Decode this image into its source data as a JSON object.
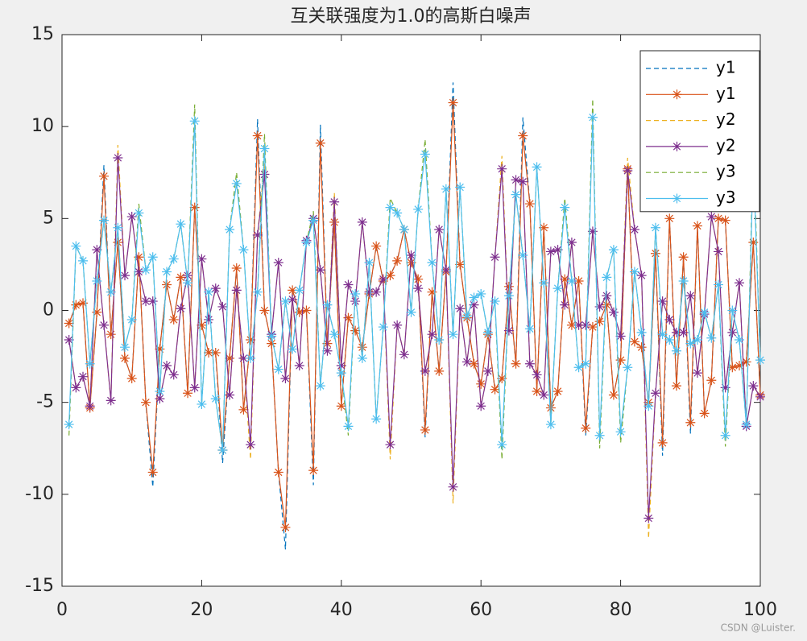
{
  "chart_data": {
    "type": "line",
    "title": "互关联强度为1.0的高斯白噪声",
    "x": [
      1,
      2,
      3,
      4,
      5,
      6,
      7,
      8,
      9,
      10,
      11,
      12,
      13,
      14,
      15,
      16,
      17,
      18,
      19,
      20,
      21,
      22,
      23,
      24,
      25,
      26,
      27,
      28,
      29,
      30,
      31,
      32,
      33,
      34,
      35,
      36,
      37,
      38,
      39,
      40,
      41,
      42,
      43,
      44,
      45,
      46,
      47,
      48,
      49,
      50,
      51,
      52,
      53,
      54,
      55,
      56,
      57,
      58,
      59,
      60,
      61,
      62,
      63,
      64,
      65,
      66,
      67,
      68,
      69,
      70,
      71,
      72,
      73,
      74,
      75,
      76,
      77,
      78,
      79,
      80,
      81,
      82,
      83,
      84,
      85,
      86,
      87,
      88,
      89,
      90,
      91,
      92,
      93,
      94,
      95,
      96,
      97,
      98,
      99,
      100
    ],
    "xlim": [
      0,
      100
    ],
    "xticks": [
      0,
      20,
      40,
      60,
      80,
      100
    ],
    "ylim": [
      -15,
      15
    ],
    "yticks": [
      -15,
      -10,
      -5,
      0,
      5,
      10,
      15
    ],
    "grid": false,
    "legend": "northeast",
    "watermark": "CSDN @Luister.",
    "series": [
      {
        "name": "y1",
        "color": "#0072BD",
        "line_style": "dashed",
        "marker": "none",
        "values": [
          -0.7,
          0.3,
          0.4,
          -5.3,
          -0.1,
          7.9,
          -1.3,
          3.7,
          -2.6,
          -3.7,
          2.9,
          -5.0,
          -9.6,
          -2.1,
          1.4,
          -0.5,
          1.8,
          -4.5,
          5.6,
          -0.8,
          -2.3,
          -2.3,
          -8.3,
          -2.6,
          2.3,
          -5.4,
          -1.6,
          10.4,
          0.0,
          -1.8,
          -8.8,
          -13.0,
          1.1,
          -0.1,
          0.0,
          -9.5,
          10.1,
          -1.8,
          4.8,
          -5.2,
          -0.4,
          -1.1,
          -2.0,
          0.9,
          3.5,
          1.6,
          1.9,
          2.7,
          4.4,
          2.6,
          1.7,
          -6.9,
          1.0,
          -3.3,
          2.1,
          12.4,
          2.5,
          -0.4,
          -2.9,
          -4.0,
          -1.3,
          -4.3,
          -3.7,
          1.3,
          -2.9,
          10.5,
          5.8,
          -4.4,
          4.5,
          -5.3,
          -4.4,
          1.7,
          -0.8,
          1.6,
          -6.8,
          -0.9,
          -0.6,
          0.3,
          -4.6,
          -2.7,
          7.7,
          -1.7,
          -2.0,
          -5.0,
          3.1,
          -7.9,
          5.0,
          -4.1,
          2.9,
          -6.7,
          4.6,
          -5.6,
          -3.8,
          5.0,
          4.9,
          -3.1,
          -3.0,
          -2.8,
          3.7,
          -4.6
        ]
      },
      {
        "name": "y1",
        "color": "#D95319",
        "line_style": "solid",
        "marker": "asterisk",
        "values": [
          -0.7,
          0.3,
          0.4,
          -5.3,
          -0.1,
          7.3,
          -1.3,
          3.7,
          -2.6,
          -3.7,
          2.9,
          -5.0,
          -8.8,
          -2.1,
          1.4,
          -0.5,
          1.8,
          -4.5,
          5.6,
          -0.8,
          -2.3,
          -2.3,
          -7.6,
          -2.6,
          2.3,
          -5.4,
          -1.6,
          9.5,
          0.0,
          -1.8,
          -8.8,
          -11.8,
          1.1,
          -0.1,
          0.0,
          -8.7,
          9.1,
          -1.8,
          4.8,
          -5.2,
          -0.4,
          -1.1,
          -2.0,
          0.9,
          3.5,
          1.6,
          1.9,
          2.7,
          4.4,
          2.6,
          1.7,
          -6.5,
          1.0,
          -3.3,
          2.1,
          11.3,
          2.5,
          -0.4,
          -2.9,
          -4.0,
          -1.3,
          -4.3,
          -3.7,
          1.3,
          -2.9,
          9.5,
          5.8,
          -4.4,
          4.5,
          -5.3,
          -4.4,
          1.7,
          -0.8,
          1.6,
          -6.4,
          -0.9,
          -0.6,
          0.3,
          -4.6,
          -2.7,
          7.7,
          -1.7,
          -2.0,
          -5.0,
          3.1,
          -7.2,
          5.0,
          -4.1,
          2.9,
          -6.1,
          4.6,
          -5.6,
          -3.8,
          5.0,
          4.9,
          -3.1,
          -3.0,
          -2.8,
          3.7,
          -4.6
        ]
      },
      {
        "name": "y2",
        "color": "#EDB120",
        "line_style": "dashed",
        "marker": "none",
        "values": [
          -1.6,
          -4.2,
          -3.6,
          -5.2,
          3.3,
          -0.8,
          -4.9,
          9.0,
          1.9,
          5.1,
          2.1,
          0.5,
          0.5,
          -4.8,
          -3.0,
          -3.5,
          0.1,
          1.9,
          -4.2,
          2.8,
          -0.5,
          1.2,
          0.2,
          -4.6,
          1.1,
          -2.6,
          -8.1,
          4.1,
          8.0,
          -1.3,
          2.6,
          -3.7,
          0.6,
          -3.0,
          3.8,
          5.0,
          2.2,
          -2.2,
          6.4,
          -3.0,
          1.4,
          0.5,
          4.8,
          1.0,
          1.0,
          1.7,
          -8.1,
          -0.8,
          -2.4,
          3.0,
          1.2,
          -3.3,
          -1.3,
          4.4,
          2.2,
          -10.5,
          0.1,
          -2.8,
          0.3,
          -5.2,
          -3.3,
          2.9,
          8.4,
          -1.1,
          7.1,
          7.0,
          -2.9,
          -3.5,
          -4.6,
          3.2,
          3.3,
          0.3,
          3.7,
          -0.8,
          -0.8,
          4.3,
          0.2,
          0.8,
          -0.1,
          -1.4,
          8.3,
          4.4,
          1.9,
          -12.4,
          -4.5,
          0.5,
          -0.5,
          -1.2,
          -1.2,
          0.8,
          -3.4,
          -0.2,
          5.1,
          3.2,
          -4.2,
          -1.2,
          1.5,
          -6.3,
          -4.1,
          -4.7
        ]
      },
      {
        "name": "y2",
        "color": "#7E2F8E",
        "line_style": "solid",
        "marker": "asterisk",
        "values": [
          -1.6,
          -4.2,
          -3.6,
          -5.2,
          3.3,
          -0.8,
          -4.9,
          8.3,
          1.9,
          5.1,
          2.1,
          0.5,
          0.5,
          -4.8,
          -3.0,
          -3.5,
          0.1,
          1.9,
          -4.2,
          2.8,
          -0.5,
          1.2,
          0.2,
          -4.6,
          1.1,
          -2.6,
          -7.3,
          4.1,
          7.4,
          -1.3,
          2.6,
          -3.7,
          0.6,
          -3.0,
          3.8,
          5.0,
          2.2,
          -2.2,
          5.9,
          -3.0,
          1.4,
          0.5,
          4.8,
          1.0,
          1.0,
          1.7,
          -7.3,
          -0.8,
          -2.4,
          3.0,
          1.2,
          -3.3,
          -1.3,
          4.4,
          2.2,
          -9.6,
          0.1,
          -2.8,
          0.3,
          -5.2,
          -3.3,
          2.9,
          7.7,
          -1.1,
          7.1,
          7.0,
          -2.9,
          -3.5,
          -4.6,
          3.2,
          3.3,
          0.3,
          3.7,
          -0.8,
          -0.8,
          4.3,
          0.2,
          0.8,
          -0.1,
          -1.4,
          7.6,
          4.4,
          1.9,
          -11.3,
          -4.5,
          0.5,
          -0.5,
          -1.2,
          -1.2,
          0.8,
          -3.4,
          -0.2,
          5.1,
          3.2,
          -4.2,
          -1.2,
          1.5,
          -6.3,
          -4.1,
          -4.7
        ]
      },
      {
        "name": "y3",
        "color": "#77AC30",
        "line_style": "dashed",
        "marker": "none",
        "values": [
          -6.8,
          3.5,
          2.7,
          -2.9,
          1.6,
          4.9,
          1.0,
          4.5,
          -2.0,
          -0.5,
          5.8,
          2.2,
          2.9,
          -4.4,
          2.1,
          2.8,
          4.7,
          1.5,
          11.2,
          -5.1,
          1.0,
          -4.8,
          -7.6,
          4.4,
          7.5,
          3.3,
          -2.6,
          1.0,
          9.6,
          -1.4,
          -3.2,
          0.5,
          -2.1,
          1.1,
          3.7,
          5.4,
          -4.1,
          0.3,
          -1.3,
          -3.4,
          -6.8,
          0.9,
          -2.6,
          2.6,
          -5.9,
          -0.9,
          6.1,
          5.3,
          4.4,
          -0.1,
          5.5,
          9.3,
          2.6,
          -1.6,
          6.6,
          -1.3,
          6.7,
          -0.3,
          0.7,
          0.9,
          -1.2,
          0.5,
          -8.1,
          0.8,
          6.3,
          3.0,
          -1.0,
          7.8,
          1.5,
          -6.2,
          1.2,
          6.1,
          1.6,
          -3.1,
          -2.9,
          11.5,
          -7.5,
          1.8,
          3.3,
          -7.2,
          -3.1,
          2.1,
          -1.2,
          -5.2,
          4.5,
          -1.3,
          -1.6,
          -2.2,
          1.6,
          -1.8,
          -1.6,
          -0.1,
          -1.5,
          1.4,
          -7.4,
          0.0,
          -1.6,
          -6.2,
          9.0,
          -2.7
        ]
      },
      {
        "name": "y3",
        "color": "#4DBEEE",
        "line_style": "solid",
        "marker": "asterisk",
        "values": [
          -6.2,
          3.5,
          2.7,
          -2.9,
          1.6,
          4.9,
          1.0,
          4.5,
          -2.0,
          -0.5,
          5.3,
          2.2,
          2.9,
          -4.4,
          2.1,
          2.8,
          4.7,
          1.5,
          10.3,
          -5.1,
          1.0,
          -4.8,
          -7.6,
          4.4,
          6.9,
          3.3,
          -2.6,
          1.0,
          8.8,
          -1.4,
          -3.2,
          0.5,
          -2.1,
          1.1,
          3.7,
          4.9,
          -4.1,
          0.3,
          -1.3,
          -3.4,
          -6.3,
          0.9,
          -2.6,
          2.6,
          -5.9,
          -0.9,
          5.6,
          5.3,
          4.4,
          -0.1,
          5.5,
          8.5,
          2.6,
          -1.6,
          6.6,
          -1.3,
          6.7,
          -0.3,
          0.7,
          0.9,
          -1.2,
          0.5,
          -7.3,
          0.8,
          6.3,
          3.0,
          -1.0,
          7.8,
          1.5,
          -6.2,
          1.2,
          5.6,
          1.6,
          -3.1,
          -2.9,
          10.5,
          -6.8,
          1.8,
          3.3,
          -6.6,
          -3.1,
          2.1,
          -1.2,
          -5.2,
          4.5,
          -1.3,
          -1.6,
          -2.2,
          1.6,
          -1.8,
          -1.6,
          -0.1,
          -1.5,
          1.4,
          -6.8,
          0.0,
          -1.6,
          -6.2,
          8.2,
          -2.7
        ]
      }
    ]
  }
}
